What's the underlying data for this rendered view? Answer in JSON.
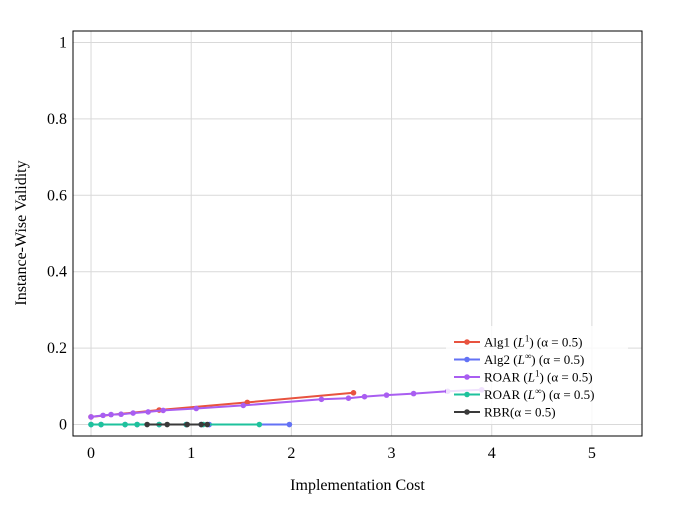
{
  "chart_data": {
    "type": "line",
    "title": "",
    "xlabel": "Implementation Cost",
    "ylabel": "Instance-Wise Validity",
    "xlim": [
      -0.18,
      5.5
    ],
    "ylim": [
      -0.03,
      1.03
    ],
    "xticks": [
      0,
      1,
      2,
      3,
      4,
      5
    ],
    "xtick_labels": [
      "0",
      "1",
      "2",
      "3",
      "4",
      "5"
    ],
    "yticks": [
      0,
      0.2,
      0.4,
      0.6,
      0.8,
      1
    ],
    "ytick_labels": [
      "0",
      "0.2",
      "0.4",
      "0.6",
      "0.8",
      "1"
    ],
    "grid": true,
    "legend_position": "bottom-right",
    "series": [
      {
        "name": "Alg1 (L¹) (α = 0.5)",
        "color": "#e8533f",
        "x": [
          0,
          0.68,
          1.56,
          2.62
        ],
        "y": [
          0.02,
          0.038,
          0.058,
          0.083
        ]
      },
      {
        "name": "Alg2 (L∞) (α = 0.5)",
        "color": "#6372f5",
        "x": [
          0,
          0.1,
          0.34,
          0.46,
          0.68,
          0.95,
          1.1,
          1.18,
          1.98
        ],
        "y": [
          0,
          0,
          0,
          0,
          0,
          0,
          0,
          0,
          0
        ]
      },
      {
        "name": "ROAR (L¹) (α = 0.5)",
        "color": "#a95ef1",
        "x": [
          0,
          0.12,
          0.2,
          0.3,
          0.42,
          0.57,
          0.72,
          1.05,
          1.52,
          2.3,
          2.57,
          2.73,
          2.95,
          3.22,
          3.56,
          3.9
        ],
        "y": [
          0.02,
          0.024,
          0.026,
          0.027,
          0.03,
          0.033,
          0.037,
          0.042,
          0.05,
          0.066,
          0.069,
          0.073,
          0.077,
          0.081,
          0.087,
          0.091
        ]
      },
      {
        "name": "ROAR (L∞) (α = 0.5)",
        "color": "#1ec29c",
        "x": [
          0,
          0.1,
          0.34,
          0.46,
          0.68,
          0.95,
          1.12,
          1.68
        ],
        "y": [
          0,
          0,
          0,
          0,
          0,
          0,
          0,
          0
        ]
      },
      {
        "name": "RBR(α = 0.5)",
        "color": "#3a3a3a",
        "x": [
          0.56,
          0.76,
          0.96,
          1.1,
          1.16
        ],
        "y": [
          0,
          0,
          0,
          0,
          0
        ]
      }
    ]
  },
  "legend": {
    "entries": [
      {
        "prefix": "Alg1 (",
        "base": "L",
        "sup": "1",
        "suffix": ") (α = 0.5)"
      },
      {
        "prefix": "Alg2 (",
        "base": "L",
        "sup": "∞",
        "suffix": ") (α = 0.5)"
      },
      {
        "prefix": "ROAR (",
        "base": "L",
        "sup": "1",
        "suffix": ") (α = 0.5)"
      },
      {
        "prefix": "ROAR (",
        "base": "L",
        "sup": "∞",
        "suffix": ") (α = 0.5)"
      },
      {
        "prefix": "RBR(α = 0.5)",
        "base": "",
        "sup": "",
        "suffix": ""
      }
    ]
  }
}
